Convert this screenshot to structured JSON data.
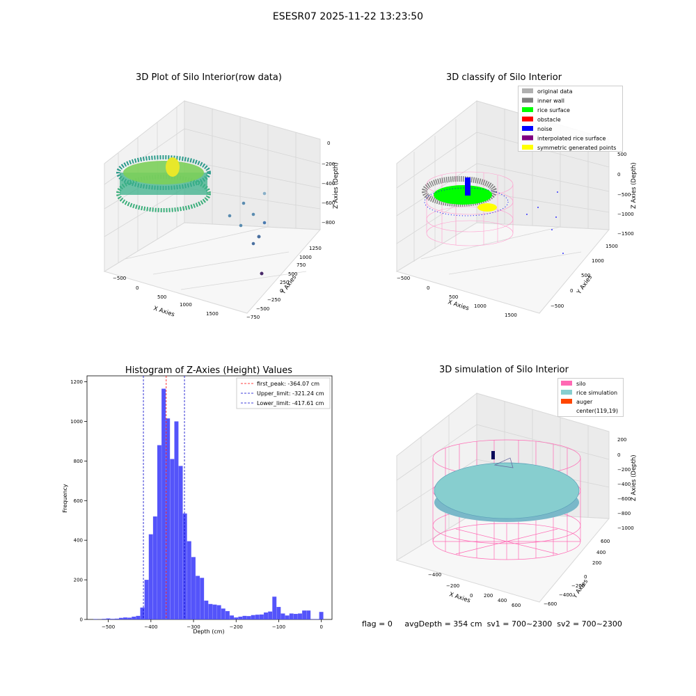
{
  "suptitle": "ESESR07 2025-11-22 13:23:50",
  "panels": {
    "raw": {
      "title": "3D Plot of Silo Interior(row data)",
      "xlabel": "X Axies",
      "ylabel": "Y Axies",
      "zlabel": "Z Axies (Depth)",
      "xticks": [
        "−500",
        "0",
        "500",
        "1000",
        "1500"
      ],
      "yticks": [
        "−750",
        "−500",
        "−250",
        "0",
        "250",
        "500",
        "750",
        "1000",
        "1250"
      ],
      "zticks": [
        "0",
        "−200",
        "−400",
        "−600",
        "−800"
      ]
    },
    "classify": {
      "title": "3D classify of Silo Interior",
      "xlabel": "X Axies",
      "ylabel": "Y Axies",
      "zlabel": "Z Axies (Depth)",
      "xticks": [
        "−500",
        "0",
        "500",
        "1000",
        "1500"
      ],
      "yticks": [
        "−500",
        "0",
        "500",
        "1000",
        "1500"
      ],
      "zticks": [
        "500",
        "0",
        "−500",
        "−1000",
        "−1500"
      ],
      "legend": [
        {
          "label": "original data",
          "color": "#b0b0b0"
        },
        {
          "label": "inner wall",
          "color": "#808080"
        },
        {
          "label": "rice surface",
          "color": "#00ff00"
        },
        {
          "label": "obstacle",
          "color": "#ff0000"
        },
        {
          "label": "noise",
          "color": "#0000ff"
        },
        {
          "label": "interpolated rice surface",
          "color": "#800080"
        },
        {
          "label": "symmetric generated points",
          "color": "#ffff00"
        }
      ]
    },
    "simulation": {
      "title": "3D simulation of Silo Interior",
      "xlabel": "X Axies",
      "ylabel": "Y Axies",
      "zlabel": "Z Axies (Depth)",
      "xticks": [
        "−400",
        "−200",
        "0",
        "200",
        "400",
        "600"
      ],
      "yticks": [
        "−600",
        "−400",
        "−200",
        "0",
        "200",
        "400",
        "600"
      ],
      "zticks": [
        "200",
        "0",
        "−200",
        "−400",
        "−600",
        "−800",
        "−1000"
      ],
      "legend": [
        {
          "label": "silo",
          "color": "#ff69b4"
        },
        {
          "label": "rice simulation",
          "color": "#87cecf"
        },
        {
          "label": "auger",
          "color": "#ff4500"
        },
        {
          "label": "center(119,19)",
          "color": "#ffffff"
        }
      ]
    }
  },
  "status": {
    "flag": "flag = 0",
    "avg": "avgDepth = 354 cm",
    "sv1": "sv1 = 700~2300",
    "sv2": "sv2 = 700~2300"
  },
  "colors": {
    "histogram_bar": "#4b4bfa",
    "first_peak": "#ff0000",
    "limit": "#0000cc",
    "silo": "#ff69b4",
    "rice": "#87cecf"
  },
  "chart_data": {
    "type": "bar",
    "title": "Histogram of Z-Axies (Height) Values",
    "xlabel": "Depth (cm)",
    "ylabel": "Frequency",
    "xlim": [
      -550,
      25
    ],
    "ylim": [
      0,
      1230
    ],
    "xticks": [
      -500,
      -400,
      -300,
      -200,
      -100,
      0
    ],
    "xtick_labels": [
      "−500",
      "−400",
      "−300",
      "−200",
      "−100",
      "0"
    ],
    "yticks": [
      0,
      200,
      400,
      600,
      800,
      1000,
      1200
    ],
    "bin_width": 10,
    "bins": [
      {
        "start": -535,
        "value": 2
      },
      {
        "start": -525,
        "value": 1
      },
      {
        "start": -515,
        "value": 3
      },
      {
        "start": -505,
        "value": 5
      },
      {
        "start": -495,
        "value": 3
      },
      {
        "start": -485,
        "value": 4
      },
      {
        "start": -475,
        "value": 8
      },
      {
        "start": -465,
        "value": 10
      },
      {
        "start": -455,
        "value": 9
      },
      {
        "start": -445,
        "value": 14
      },
      {
        "start": -435,
        "value": 18
      },
      {
        "start": -425,
        "value": 60
      },
      {
        "start": -415,
        "value": 200
      },
      {
        "start": -405,
        "value": 430
      },
      {
        "start": -395,
        "value": 520
      },
      {
        "start": -385,
        "value": 880
      },
      {
        "start": -375,
        "value": 1165
      },
      {
        "start": -365,
        "value": 1015
      },
      {
        "start": -355,
        "value": 810
      },
      {
        "start": -345,
        "value": 1000
      },
      {
        "start": -335,
        "value": 775
      },
      {
        "start": -325,
        "value": 535
      },
      {
        "start": -315,
        "value": 395
      },
      {
        "start": -305,
        "value": 315
      },
      {
        "start": -295,
        "value": 220
      },
      {
        "start": -285,
        "value": 210
      },
      {
        "start": -275,
        "value": 95
      },
      {
        "start": -265,
        "value": 78
      },
      {
        "start": -255,
        "value": 75
      },
      {
        "start": -245,
        "value": 72
      },
      {
        "start": -235,
        "value": 55
      },
      {
        "start": -225,
        "value": 42
      },
      {
        "start": -215,
        "value": 20
      },
      {
        "start": -205,
        "value": 10
      },
      {
        "start": -195,
        "value": 14
      },
      {
        "start": -185,
        "value": 18
      },
      {
        "start": -175,
        "value": 17
      },
      {
        "start": -165,
        "value": 22
      },
      {
        "start": -155,
        "value": 24
      },
      {
        "start": -145,
        "value": 25
      },
      {
        "start": -135,
        "value": 35
      },
      {
        "start": -125,
        "value": 40
      },
      {
        "start": -115,
        "value": 115
      },
      {
        "start": -105,
        "value": 63
      },
      {
        "start": -95,
        "value": 30
      },
      {
        "start": -85,
        "value": 20
      },
      {
        "start": -75,
        "value": 30
      },
      {
        "start": -65,
        "value": 28
      },
      {
        "start": -55,
        "value": 30
      },
      {
        "start": -45,
        "value": 45
      },
      {
        "start": -35,
        "value": 45
      },
      {
        "start": -25,
        "value": 2
      },
      {
        "start": -15,
        "value": 2
      },
      {
        "start": -5,
        "value": 38
      }
    ],
    "vlines": [
      {
        "label": "first_peak: -364.07 cm",
        "x": -364.07,
        "color": "#ff0000"
      },
      {
        "label": "Upper_limit: -321.24 cm",
        "x": -321.24,
        "color": "#0000cc"
      },
      {
        "label": "Lower_limit: -417.61 cm",
        "x": -417.61,
        "color": "#0000cc"
      }
    ],
    "legend_position": "upper right"
  }
}
